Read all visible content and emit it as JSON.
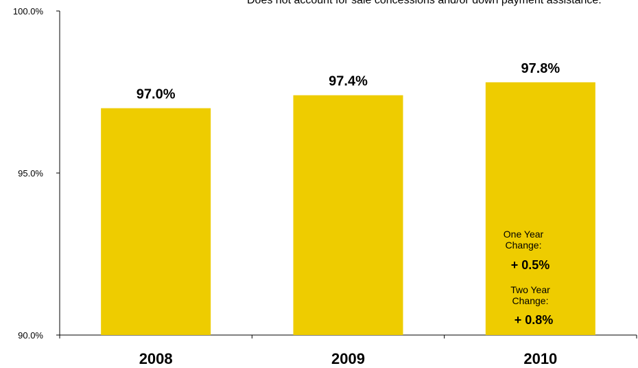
{
  "chart_data": {
    "type": "bar",
    "categories": [
      "2008",
      "2009",
      "2010"
    ],
    "values": [
      97.0,
      97.4,
      97.8
    ],
    "data_labels": [
      "97.0%",
      "97.4%",
      "97.8%"
    ],
    "y_ticks": [
      {
        "value": 90,
        "label": "90.0%"
      },
      {
        "value": 95,
        "label": "95.0%"
      },
      {
        "value": 100,
        "label": "100.0%"
      }
    ],
    "ylim": [
      90,
      100
    ],
    "bar_color": "#EECC00",
    "axis_color": "#000000",
    "note": "Does not account for sale concessions and/or down payment assistance.",
    "annotations": {
      "one_year_label": "One Year Change:",
      "one_year_value": "+ 0.5%",
      "two_year_label": "Two Year Change:",
      "two_year_value": "+ 0.8%"
    }
  }
}
